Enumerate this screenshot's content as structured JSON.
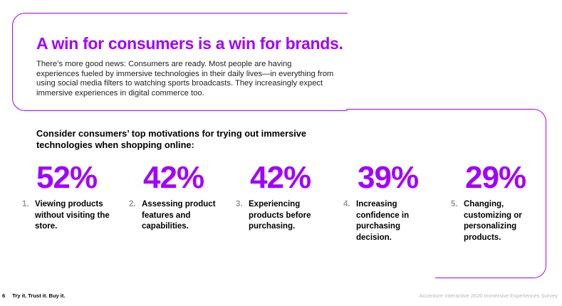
{
  "heading": "A win for consumers is a win for brands.",
  "intro": "There’s more good news: Consumers are ready. Most people are having experiences fueled by immersive technologies in their daily lives—in everything from using social media filters to watching sports broadcasts. They increasingly expect immersive experiences in digital commerce too.",
  "subhead": "Consider consumers’ top motivations for trying out immersive technologies when shopping online:",
  "stats": [
    {
      "value": "52%",
      "num": "1.",
      "label": "Viewing products without visiting the store."
    },
    {
      "value": "42%",
      "num": "2.",
      "label": "Assessing product features and capabilities."
    },
    {
      "value": "42%",
      "num": "3.",
      "label": "Experiencing products before purchasing."
    },
    {
      "value": "39%",
      "num": "4.",
      "label": "Increasing confidence in purchasing decision."
    },
    {
      "value": "29%",
      "num": "5.",
      "label": "Changing, customizing or personalizing products."
    }
  ],
  "footer": {
    "page_number": "6",
    "tagline": "Try it. Trust it. Buy it.",
    "source": "Accenture Interactive 2020 Immersive Experiences Survey"
  },
  "colors": {
    "accent": "#a100ff",
    "muted": "#9a9a9a"
  }
}
